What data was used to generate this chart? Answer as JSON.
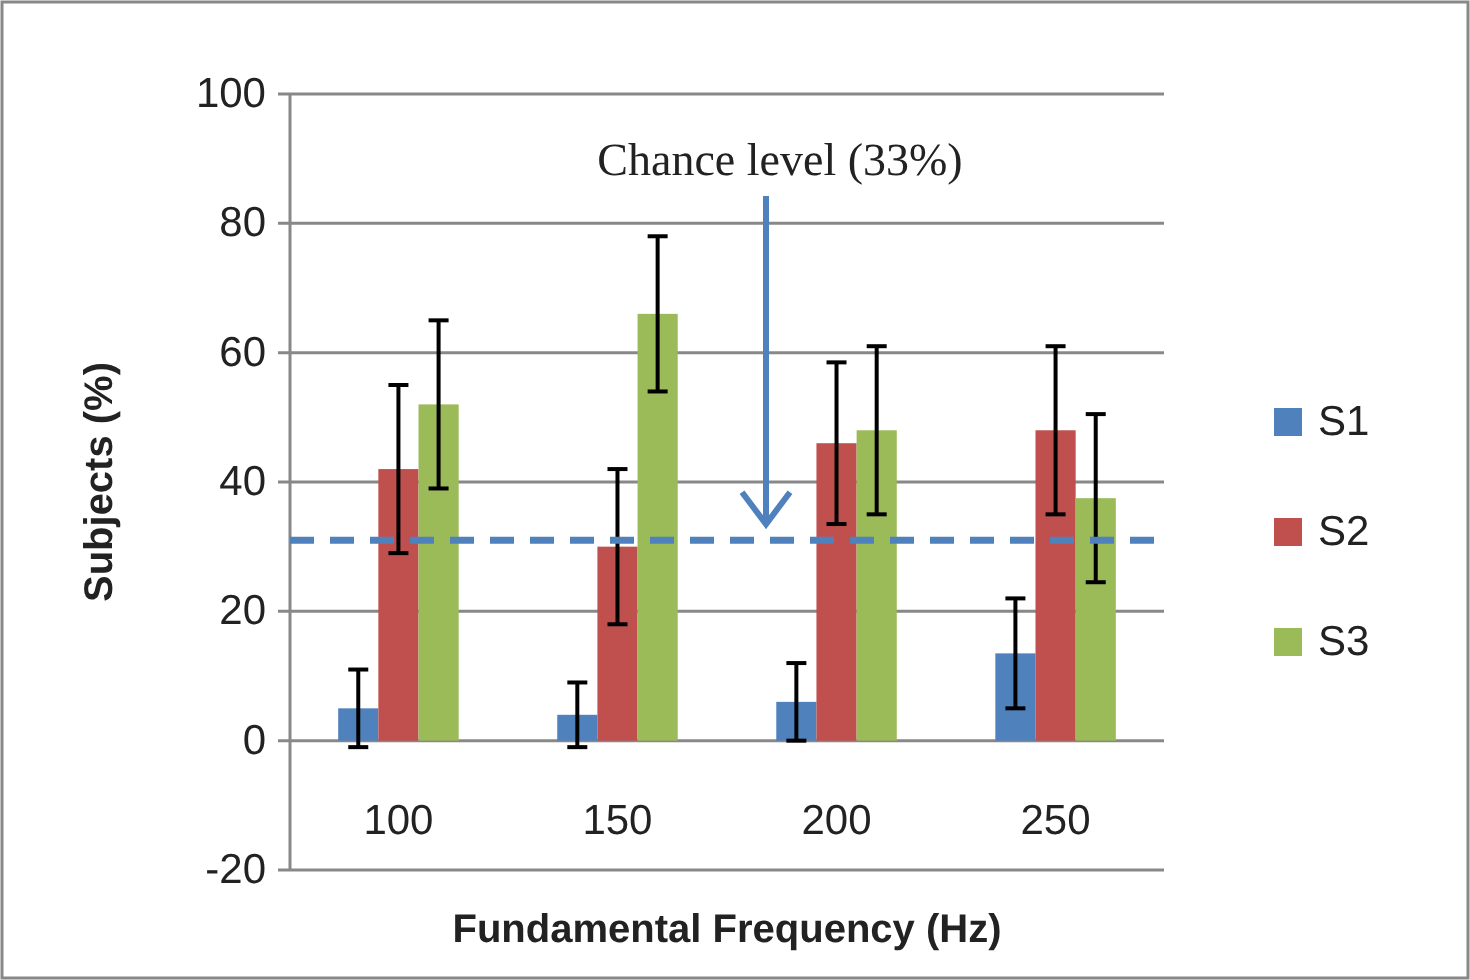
{
  "chart_data": {
    "type": "bar",
    "xlabel": "Fundamental Frequency (Hz)",
    "ylabel": "Subjects (%)",
    "categories": [
      "100",
      "150",
      "200",
      "250"
    ],
    "series": [
      {
        "name": "S1",
        "color": "#4f81bd",
        "values": [
          5,
          4,
          6,
          13.5
        ],
        "errors": [
          6,
          5,
          6,
          8.5
        ]
      },
      {
        "name": "S2",
        "color": "#c0504d",
        "values": [
          42,
          30,
          46,
          48
        ],
        "errors": [
          13,
          12,
          12.5,
          13
        ]
      },
      {
        "name": "S3",
        "color": "#9bbb59",
        "values": [
          52,
          66,
          48,
          37.5
        ],
        "errors": [
          13,
          12,
          13,
          13
        ]
      }
    ],
    "ylim": [
      -20,
      100
    ],
    "yticks": [
      -20,
      0,
      20,
      40,
      60,
      80,
      100
    ],
    "grid": "y",
    "legend": "right",
    "ref_lines": [
      {
        "axis": "y",
        "value": 31,
        "color": "#4f81bd",
        "line_style": "dashed"
      }
    ],
    "annotations": [
      "Chance level (33%)"
    ]
  }
}
